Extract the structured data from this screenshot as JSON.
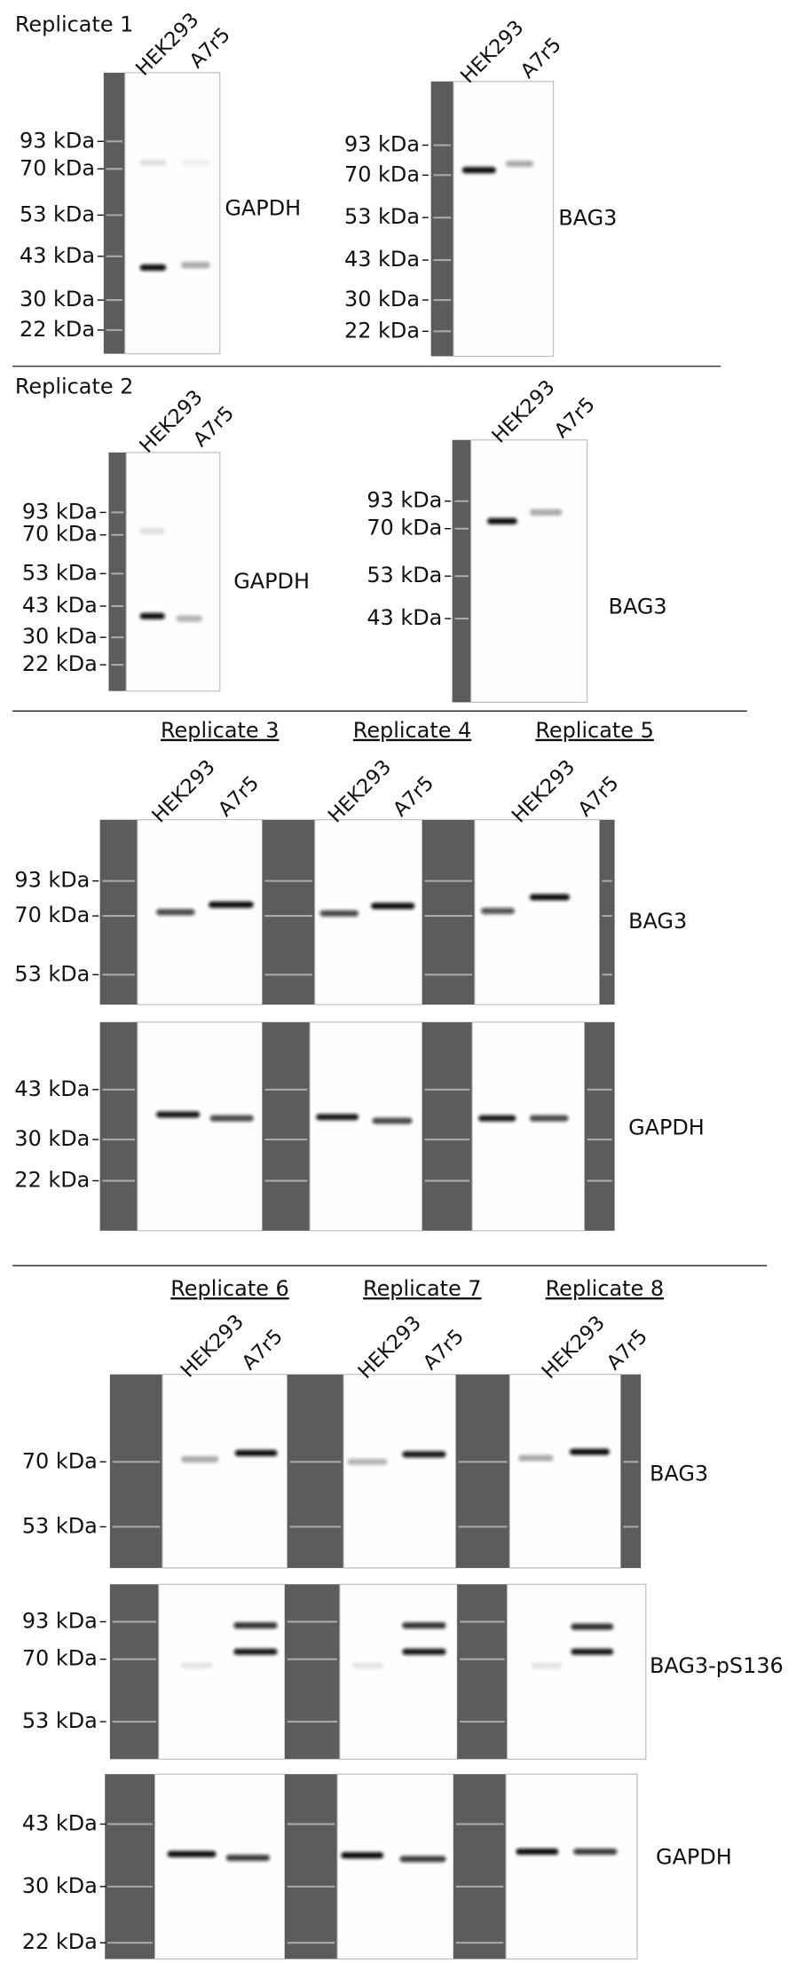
{
  "sections": [
    {
      "title": "Replicate 1",
      "blots": [
        {
          "lanes": [
            "HEK293",
            "A7r5"
          ],
          "markers": [
            "93 kDa",
            "70 kDa",
            "53 kDa",
            "43 kDa",
            "30 kDa",
            "22 kDa"
          ],
          "target": "GAPDH"
        },
        {
          "lanes": [
            "HEK293",
            "A7r5"
          ],
          "markers": [
            "93 kDa",
            "70 kDa",
            "53 kDa",
            "43 kDa",
            "30 kDa",
            "22 kDa"
          ],
          "target": "BAG3"
        }
      ]
    },
    {
      "title": "Replicate 2",
      "blots": [
        {
          "lanes": [
            "HEK293",
            "A7r5"
          ],
          "markers": [
            "93 kDa",
            "70 kDa",
            "53 kDa",
            "43 kDa",
            "30 kDa",
            "22 kDa"
          ],
          "target": "GAPDH"
        },
        {
          "lanes": [
            "HEK293",
            "A7r5"
          ],
          "markers": [
            "93 kDa",
            "70 kDa",
            "53 kDa",
            "43 kDa"
          ],
          "target": "BAG3"
        }
      ]
    },
    {
      "replicates": [
        {
          "title": "Replicate 3",
          "lanes": [
            "HEK293",
            "A7r5"
          ]
        },
        {
          "title": "Replicate 4",
          "lanes": [
            "HEK293",
            "A7r5"
          ]
        },
        {
          "title": "Replicate 5",
          "lanes": [
            "HEK293",
            "A7r5"
          ]
        }
      ],
      "blots": [
        {
          "markers": [
            "93 kDa",
            "70 kDa",
            "53 kDa"
          ],
          "target": "BAG3"
        },
        {
          "markers": [
            "43 kDa",
            "30 kDa",
            "22 kDa"
          ],
          "target": "GAPDH"
        }
      ]
    },
    {
      "replicates": [
        {
          "title": "Replicate 6",
          "lanes": [
            "HEK293",
            "A7r5"
          ]
        },
        {
          "title": "Replicate 7",
          "lanes": [
            "HEK293",
            "A7r5"
          ]
        },
        {
          "title": "Replicate 8",
          "lanes": [
            "HEK293",
            "A7r5"
          ]
        }
      ],
      "blots": [
        {
          "markers": [
            "70 kDa",
            "53 kDa"
          ],
          "target": "BAG3"
        },
        {
          "markers": [
            "93 kDa",
            "70 kDa",
            "53 kDa"
          ],
          "target": "BAG3-pS136"
        },
        {
          "markers": [
            "43 kDa",
            "30 kDa",
            "22 kDa"
          ],
          "target": "GAPDH"
        }
      ]
    }
  ]
}
